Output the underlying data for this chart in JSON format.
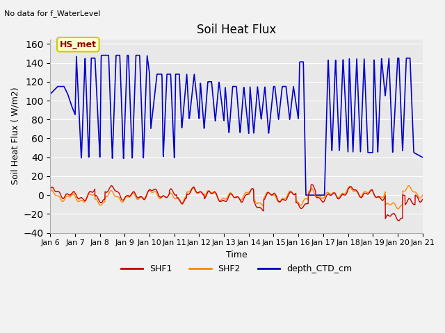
{
  "title": "Soil Heat Flux",
  "subtitle": "No data for f_WaterLevel",
  "ylabel": "Soil Heat Flux ( W/m2)",
  "xlabel": "Time",
  "ylim": [
    -40,
    165
  ],
  "yticks": [
    -40,
    -20,
    0,
    20,
    40,
    60,
    80,
    100,
    120,
    140,
    160
  ],
  "bg_color": "#e8e8e8",
  "fig_color": "#f2f2f2",
  "annotation_text": "HS_met",
  "annotation_bg": "#ffffcc",
  "annotation_border": "#cccc00",
  "annotation_text_color": "#880000",
  "series": {
    "SHF1_color": "#cc0000",
    "SHF2_color": "#ff8800",
    "depth_CTD_color": "#0000cc"
  },
  "legend": {
    "SHF1": "SHF1",
    "SHF2": "SHF2",
    "depth_CTD_cm": "depth_CTD_cm"
  },
  "depth_CTD_keypoints": {
    "t": [
      0.0,
      0.3,
      0.55,
      0.7,
      0.85,
      1.0,
      1.05,
      1.25,
      1.4,
      1.55,
      1.65,
      1.8,
      2.0,
      2.05,
      2.2,
      2.35,
      2.5,
      2.65,
      2.8,
      2.95,
      3.1,
      3.15,
      3.3,
      3.45,
      3.6,
      3.75,
      3.9,
      4.0,
      4.05,
      4.3,
      4.5,
      4.55,
      4.7,
      4.85,
      5.0,
      5.05,
      5.2,
      5.3,
      5.5,
      5.6,
      5.8,
      6.0,
      6.05,
      6.2,
      6.35,
      6.5,
      6.65,
      6.8,
      7.0,
      7.05,
      7.2,
      7.35,
      7.5,
      7.65,
      7.8,
      8.0,
      8.05,
      8.2,
      8.35,
      8.5,
      8.65,
      8.8,
      9.0,
      9.05,
      9.2,
      9.35,
      9.5,
      9.65,
      9.8,
      10.0,
      10.05,
      10.2,
      10.3,
      10.5,
      10.6,
      10.65,
      10.8,
      10.9,
      11.0,
      11.05,
      11.2,
      11.35,
      11.5,
      11.65,
      11.8,
      12.0,
      12.05,
      12.2,
      12.35,
      12.5,
      12.65,
      12.8,
      13.0,
      13.05,
      13.2,
      13.35,
      13.5,
      13.65,
      13.8,
      14.0,
      14.05,
      14.2,
      14.35,
      14.5,
      14.65,
      15.0
    ],
    "v": [
      107,
      115,
      115,
      107,
      95,
      85,
      147,
      37,
      147,
      37,
      145,
      145,
      38,
      148,
      148,
      148,
      38,
      148,
      148,
      38,
      148,
      148,
      38,
      148,
      148,
      38,
      148,
      128,
      70,
      128,
      128,
      38,
      128,
      128,
      38,
      128,
      128,
      70,
      128,
      80,
      128,
      80,
      120,
      70,
      120,
      120,
      78,
      120,
      78,
      115,
      65,
      115,
      115,
      65,
      115,
      65,
      115,
      65,
      115,
      80,
      115,
      65,
      115,
      115,
      80,
      115,
      115,
      80,
      115,
      80,
      141,
      141,
      0,
      0,
      0,
      0,
      0,
      0,
      0,
      0,
      145,
      45,
      145,
      45,
      145,
      45,
      145,
      45,
      145,
      45,
      145,
      45,
      45,
      145,
      45,
      145,
      105,
      145,
      45,
      145,
      145,
      45,
      145,
      145,
      45,
      40
    ]
  }
}
